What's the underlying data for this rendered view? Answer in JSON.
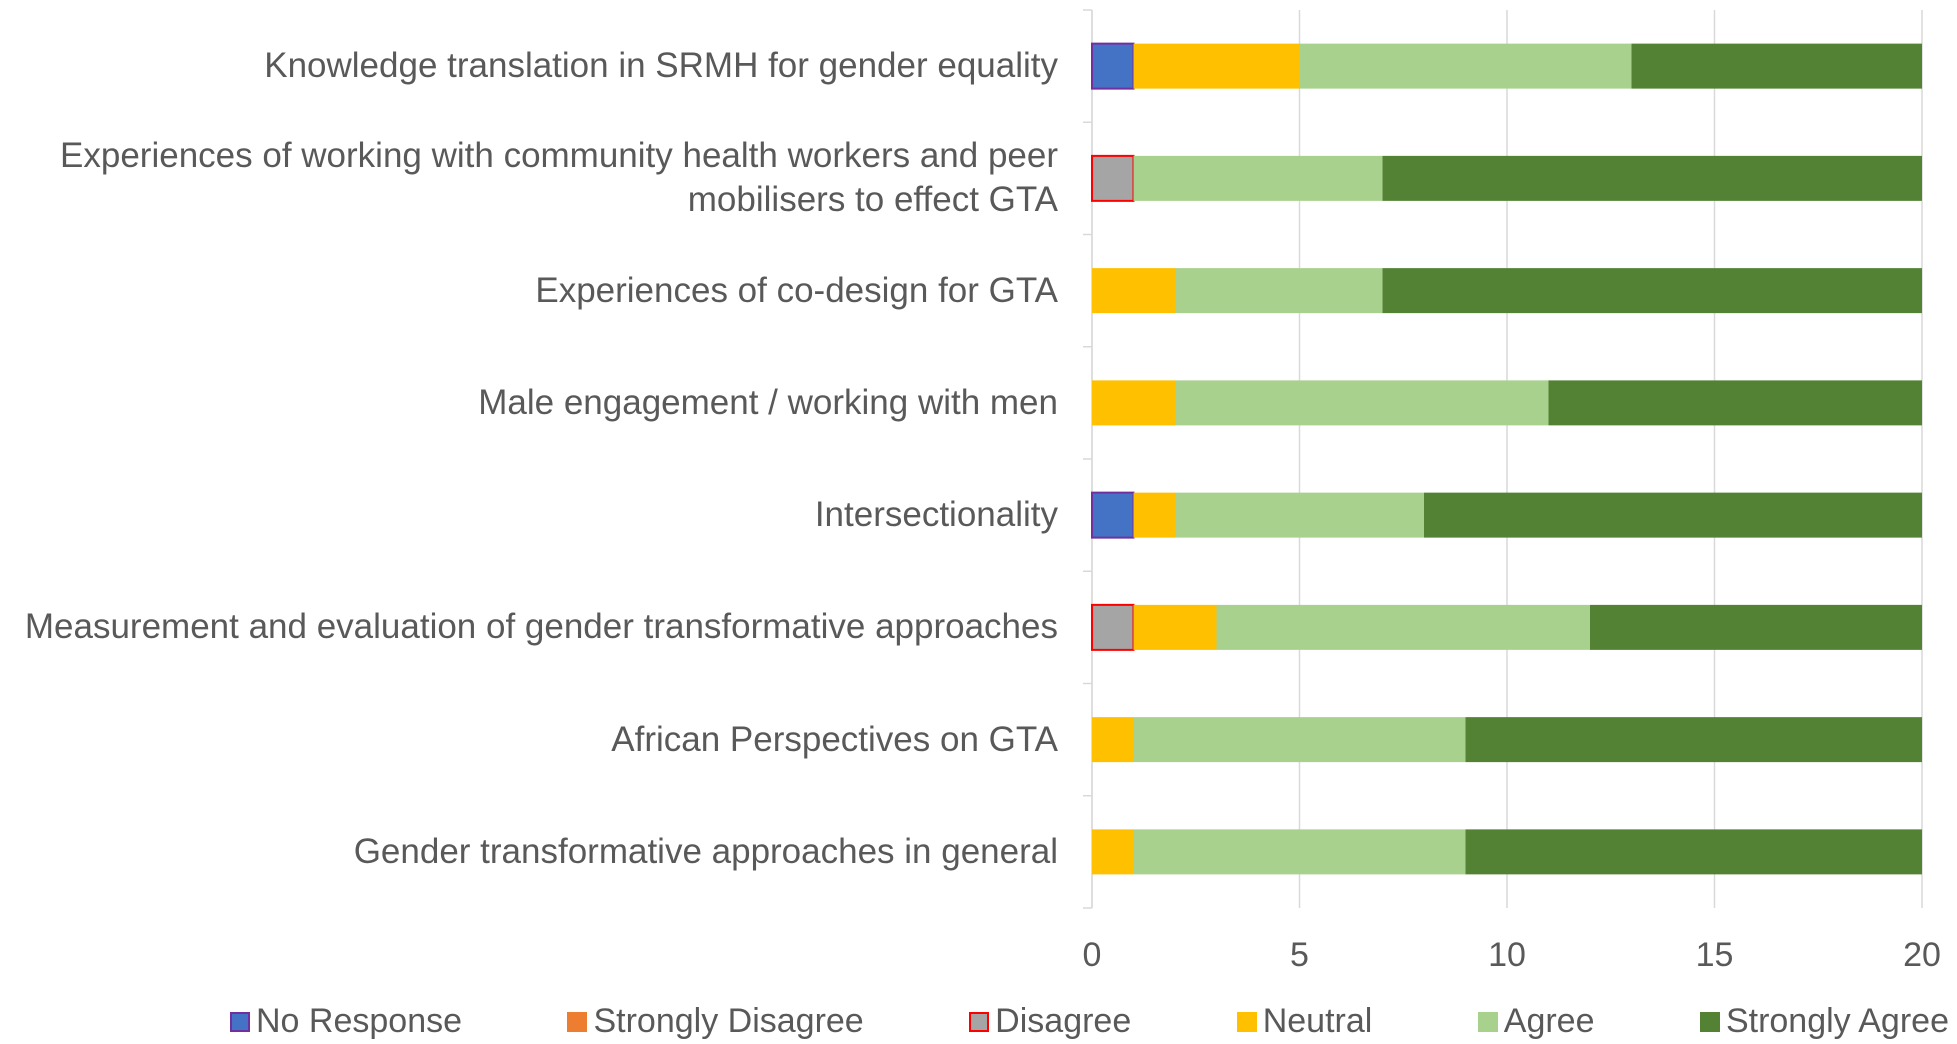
{
  "chart_data": {
    "type": "stacked_barh",
    "categories": [
      "Knowledge translation in SRMH for gender equality",
      "Experiences of working with community health workers and peer mobilisers to effect GTA",
      "Experiences of co-design for GTA",
      "Male engagement / working with men",
      "Intersectionality",
      "Measurement and evaluation of gender transformative approaches",
      "African Perspectives on GTA",
      "Gender transformative approaches in general"
    ],
    "series": [
      {
        "name": "No Response",
        "color": "#4472c4",
        "border": "#7030a0",
        "values": [
          1,
          0,
          0,
          0,
          1,
          0,
          0,
          0
        ]
      },
      {
        "name": "Strongly Disagree",
        "color": "#ed7d31",
        "values": [
          0,
          0,
          0,
          0,
          0,
          0,
          0,
          0
        ]
      },
      {
        "name": "Disagree",
        "color": "#a5a5a5",
        "border": "#ff0000",
        "values": [
          0,
          1,
          0,
          0,
          0,
          1,
          0,
          0
        ]
      },
      {
        "name": "Neutral",
        "color": "#ffc000",
        "values": [
          4,
          0,
          2,
          2,
          1,
          2,
          1,
          1
        ]
      },
      {
        "name": "Agree",
        "color": "#a9d18e",
        "values": [
          8,
          6,
          5,
          9,
          6,
          9,
          8,
          8
        ]
      },
      {
        "name": "Strongly Agree",
        "color": "#548235",
        "values": [
          7,
          13,
          13,
          9,
          12,
          8,
          11,
          11
        ]
      }
    ],
    "xlim": [
      0,
      20
    ],
    "xticks": [
      0,
      5,
      10,
      15,
      20
    ],
    "grid": true,
    "legend": "bottom"
  }
}
